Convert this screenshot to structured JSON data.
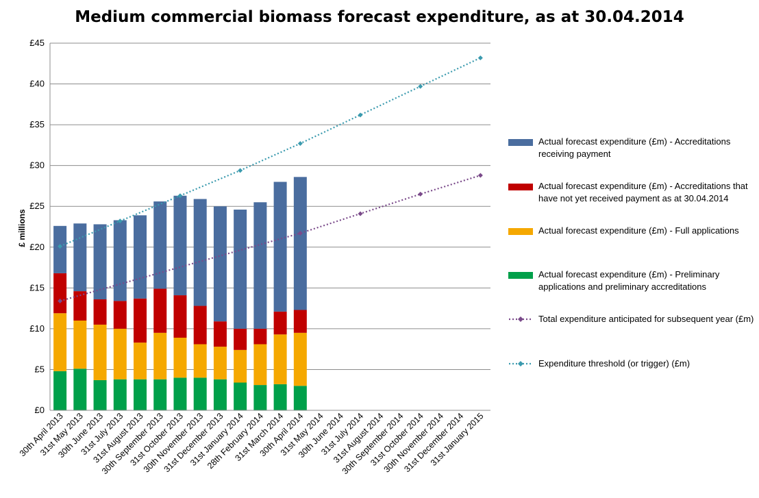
{
  "chart_data": {
    "type": "bar",
    "stacked": true,
    "title": "Medium commercial biomass forecast expenditure, as at 30.04.2014",
    "xlabel": "",
    "ylabel": "£ millions",
    "ylim": [
      0,
      45
    ],
    "y_ticks": [
      0,
      5,
      10,
      15,
      20,
      25,
      30,
      35,
      40,
      45
    ],
    "y_tick_labels": [
      "£0",
      "£5",
      "£10",
      "£15",
      "£20",
      "£25",
      "£30",
      "£35",
      "£40",
      "£45"
    ],
    "grid": true,
    "legend_position": "right",
    "categories": [
      "30th April 2013",
      "31st May 2013",
      "30th June 2013",
      "31st July 2013",
      "31st August 2013",
      "30th September 2013",
      "31st October 2013",
      "30th November 2013",
      "31st December 2013",
      "31st January 2014",
      "28th February 2014",
      "31st March 2014",
      "30th April 2014",
      "31st May 2014",
      "30th June 2014",
      "31st July 2014",
      "31st August 2014",
      "30th September 2014",
      "31st October 2014",
      "30th November 2014",
      "31st December 2014",
      "31st January 2015"
    ],
    "bar_series": [
      {
        "name": "Actual forecast expenditure (£m)  - Preliminary applications and preliminary accreditations",
        "color": "#00a04a",
        "values": [
          4.8,
          5.1,
          3.7,
          3.8,
          3.8,
          3.8,
          4.0,
          4.0,
          3.8,
          3.4,
          3.1,
          3.2,
          3.0,
          null,
          null,
          null,
          null,
          null,
          null,
          null,
          null,
          null
        ]
      },
      {
        "name": "Actual forecast expenditure (£m) - Full applications",
        "color": "#f5a800",
        "values": [
          7.1,
          5.9,
          6.8,
          6.2,
          4.5,
          5.7,
          4.9,
          4.1,
          4.0,
          4.0,
          5.0,
          6.1,
          6.5,
          null,
          null,
          null,
          null,
          null,
          null,
          null,
          null,
          null
        ]
      },
      {
        "name": "Actual forecast expenditure (£m) - Accreditations that have not yet received payment as at 30.04.2014",
        "color": "#c00000",
        "values": [
          4.9,
          3.6,
          3.1,
          3.4,
          5.4,
          5.4,
          5.2,
          4.7,
          3.1,
          2.6,
          1.9,
          2.8,
          2.8,
          null,
          null,
          null,
          null,
          null,
          null,
          null,
          null,
          null
        ]
      },
      {
        "name": "Actual forecast expenditure (£m) - Accreditations receiving payment",
        "color": "#4a6d9f",
        "values": [
          5.8,
          8.3,
          9.2,
          9.9,
          10.2,
          10.7,
          12.2,
          13.1,
          14.1,
          14.6,
          15.5,
          15.9,
          16.3,
          null,
          null,
          null,
          null,
          null,
          null,
          null,
          null,
          null
        ]
      }
    ],
    "line_series": [
      {
        "name": "Total expenditure anticipated for subsequent year (£m)",
        "color": "#7a4a8a",
        "values": [
          13.4,
          null,
          null,
          null,
          null,
          null,
          null,
          null,
          null,
          null,
          null,
          null,
          21.7,
          null,
          null,
          24.1,
          null,
          null,
          26.5,
          null,
          null,
          28.8
        ]
      },
      {
        "name": "Expenditure threshold (or trigger) (£m)",
        "color": "#3a9aae",
        "values": [
          20.1,
          null,
          null,
          23.2,
          null,
          null,
          26.3,
          null,
          null,
          29.4,
          null,
          null,
          32.7,
          null,
          null,
          36.2,
          null,
          null,
          39.7,
          null,
          null,
          43.2
        ]
      }
    ]
  },
  "legend": {
    "items": [
      {
        "label": "Actual forecast expenditure (£m) - Accreditations receiving payment",
        "kind": "swatch",
        "color": "#4a6d9f"
      },
      {
        "label": "Actual forecast expenditure (£m) - Accreditations that have not yet received payment as at 30.04.2014",
        "kind": "swatch",
        "color": "#c00000"
      },
      {
        "label": "Actual forecast expenditure (£m) - Full applications",
        "kind": "swatch",
        "color": "#f5a800"
      },
      {
        "label": "Actual forecast expenditure (£m)  - Preliminary applications and preliminary accreditations",
        "kind": "swatch",
        "color": "#00a04a"
      },
      {
        "label": "Total expenditure anticipated for subsequent year (£m)",
        "kind": "line",
        "color": "#7a4a8a"
      },
      {
        "label": "Expenditure threshold (or trigger) (£m)",
        "kind": "line",
        "color": "#3a9aae"
      }
    ]
  }
}
